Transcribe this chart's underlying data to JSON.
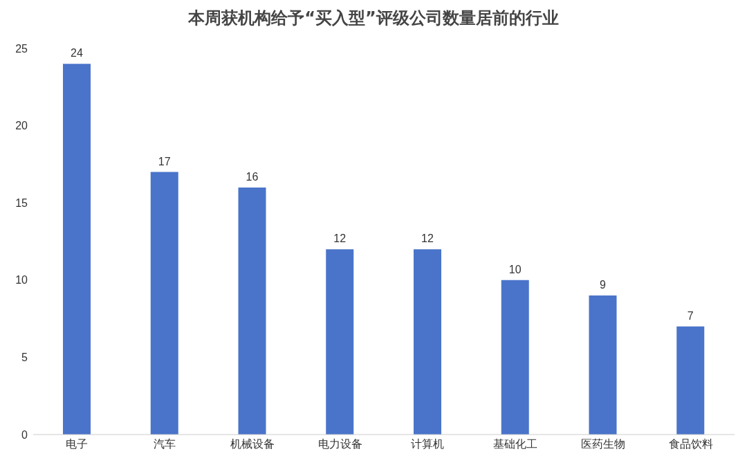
{
  "chart_data": {
    "type": "bar",
    "title": "本周获机构给予“买入型”评级公司数量居前的行业",
    "categories": [
      "电子",
      "汽车",
      "机械设备",
      "电力设备",
      "计算机",
      "基础化工",
      "医药生物",
      "食品饮料"
    ],
    "values": [
      24,
      17,
      16,
      12,
      12,
      10,
      9,
      7
    ],
    "color": "#4a74c9",
    "ylim": [
      0,
      25
    ],
    "yticks": [
      0,
      5,
      10,
      15,
      20,
      25
    ],
    "grid": false,
    "data_labels": true
  }
}
